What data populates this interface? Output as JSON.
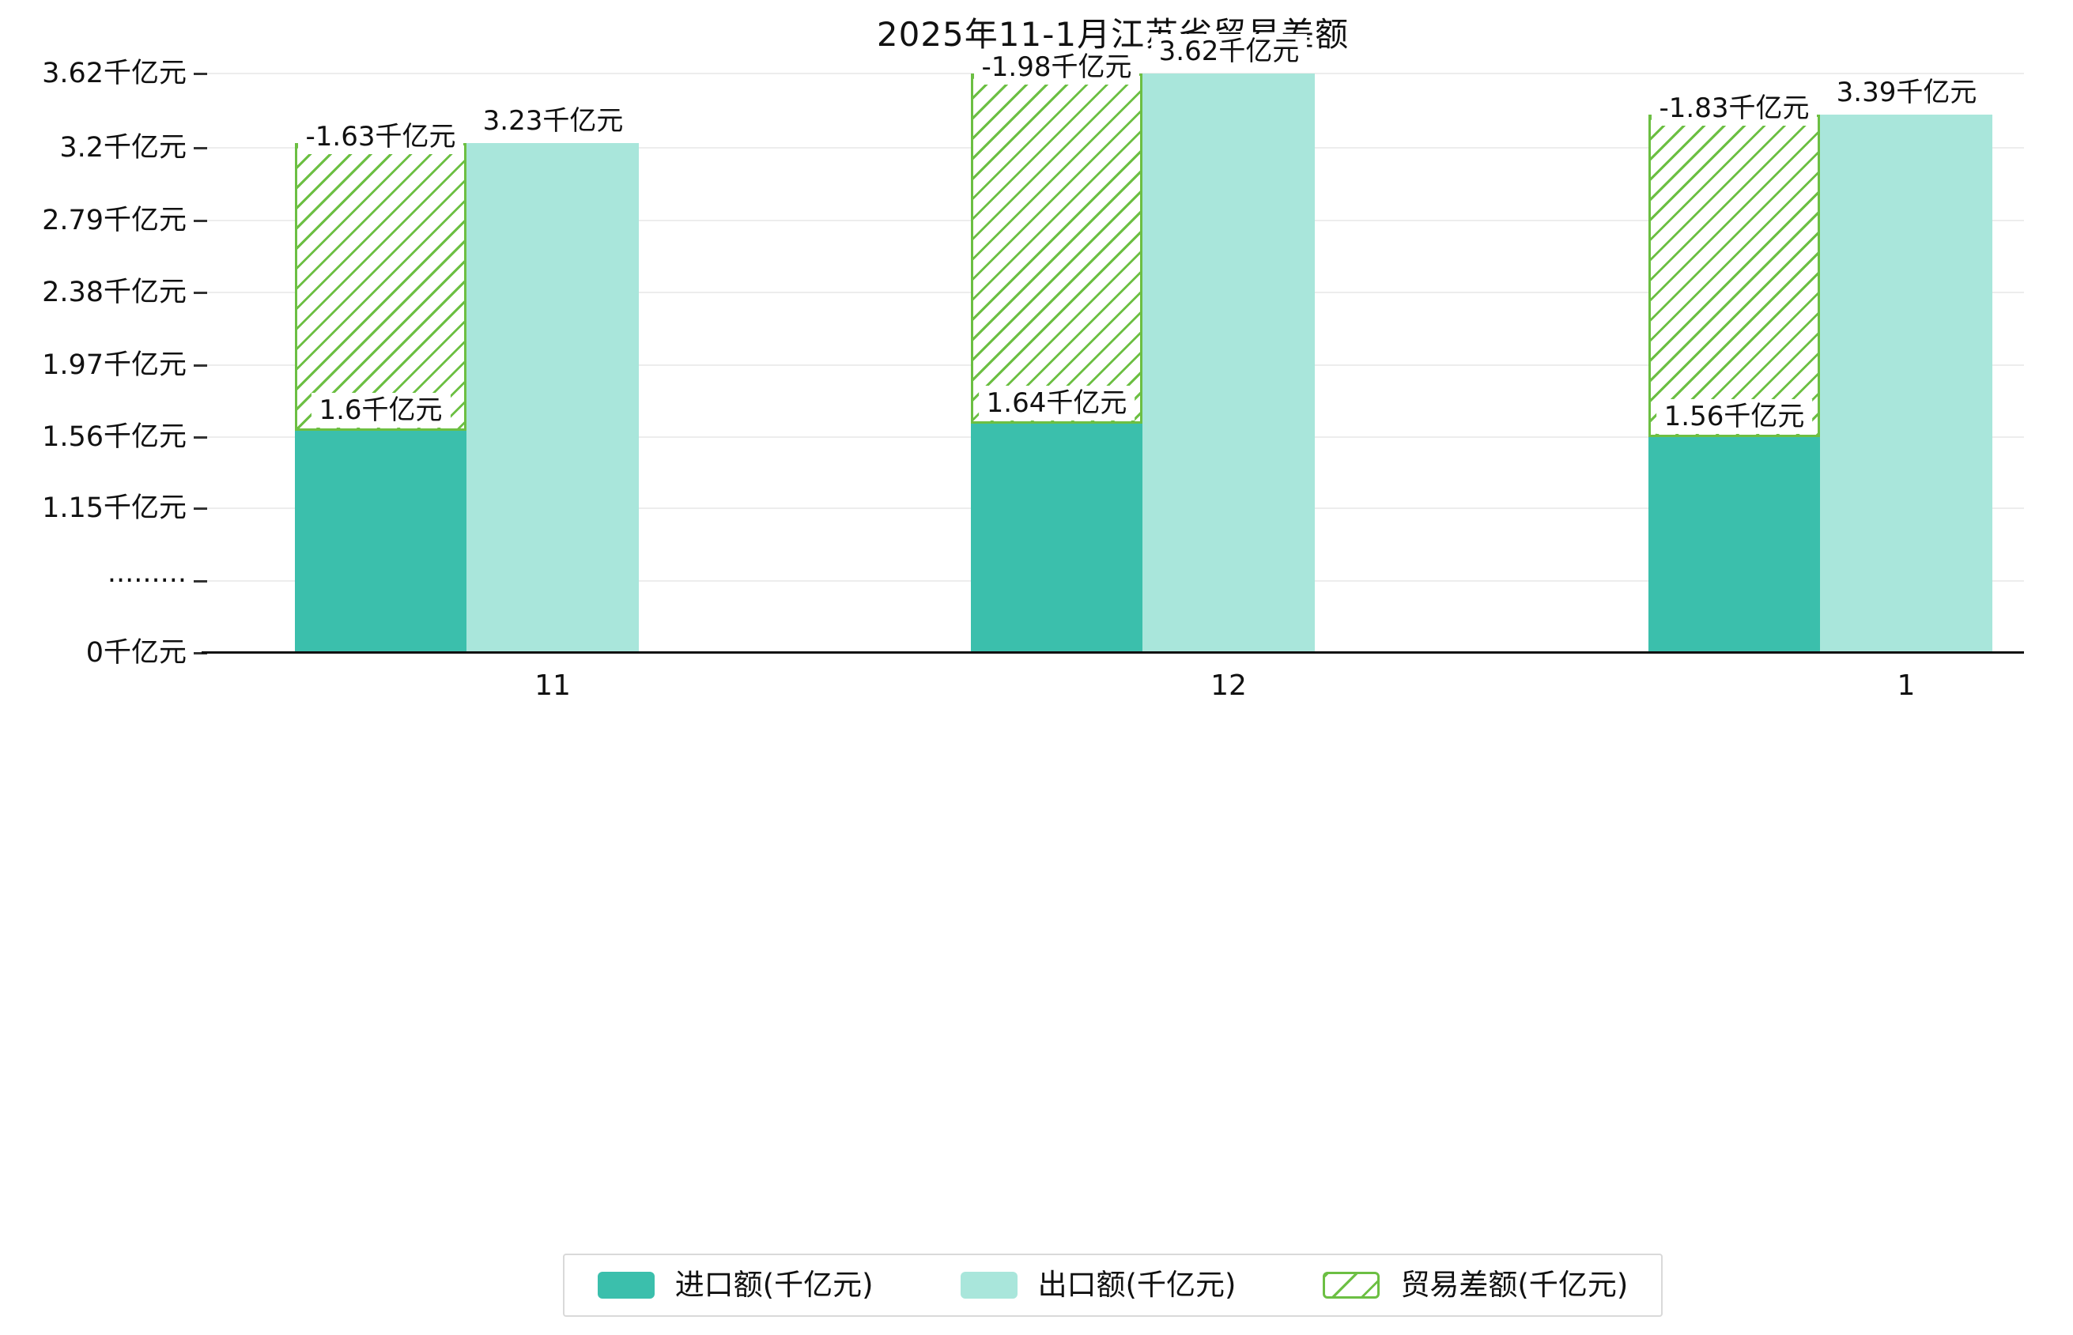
{
  "chart_data": {
    "type": "bar",
    "title": "2025年11-1月江苏省贸易差额",
    "categories": [
      "11",
      "12",
      "1"
    ],
    "series": [
      {
        "name": "进口额(千亿元)",
        "values": [
          1.6,
          1.64,
          1.56
        ],
        "labels": [
          "1.6千亿元",
          "1.64千亿元",
          "1.56千亿元"
        ],
        "color": "#3bbfac",
        "style": "solid"
      },
      {
        "name": "出口额(千亿元)",
        "values": [
          3.23,
          3.62,
          3.39
        ],
        "labels": [
          "3.23千亿元",
          "3.62千亿元",
          "3.39千亿元"
        ],
        "color": "#a9e6db",
        "style": "solid"
      },
      {
        "name": "贸易差额(千亿元)",
        "values": [
          -1.63,
          -1.98,
          -1.83
        ],
        "labels": [
          "-1.63千亿元",
          "-1.98千亿元",
          "-1.83千亿元"
        ],
        "color": "#6cbf43",
        "style": "hatched-outline"
      }
    ],
    "y_ticks": [
      "0千亿元",
      "·········",
      "1.15千亿元",
      "1.56千亿元",
      "1.97千亿元",
      "2.38千亿元",
      "2.79千亿元",
      "3.2千亿元",
      "3.62千亿元"
    ],
    "y_unit": "千亿元",
    "ylim": [
      0,
      3.62
    ],
    "axis_break": true,
    "grid": true,
    "legend_position": "bottom",
    "xlabel": "",
    "ylabel": ""
  },
  "colors": {
    "import": "#3bbfac",
    "export": "#a9e6db",
    "balance_hatch": "#6cbf43",
    "gridline": "#ededed",
    "axis": "#111111",
    "legend_border": "#d9d9d9",
    "background": "#ffffff",
    "text": "#111111"
  }
}
